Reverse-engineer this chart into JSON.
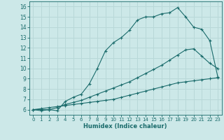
{
  "xlabel": "Humidex (Indice chaleur)",
  "bg_color": "#cce8e8",
  "grid_color": "#b8d8d8",
  "line_color": "#1a6b6b",
  "xlim": [
    -0.5,
    23.5
  ],
  "ylim": [
    5.5,
    16.5
  ],
  "xticks": [
    0,
    1,
    2,
    3,
    4,
    5,
    6,
    7,
    8,
    9,
    10,
    11,
    12,
    13,
    14,
    15,
    16,
    17,
    18,
    19,
    20,
    21,
    22,
    23
  ],
  "yticks": [
    6,
    7,
    8,
    9,
    10,
    11,
    12,
    13,
    14,
    15,
    16
  ],
  "line1_x": [
    0,
    1,
    2,
    3,
    4,
    5,
    6,
    7,
    8,
    9,
    10,
    11,
    12,
    13,
    14,
    15,
    16,
    17,
    18,
    19,
    20,
    21,
    22,
    23
  ],
  "line1_y": [
    6.0,
    5.9,
    6.0,
    5.9,
    6.8,
    7.2,
    7.5,
    8.5,
    10.0,
    11.7,
    12.5,
    13.0,
    13.7,
    14.7,
    15.0,
    15.0,
    15.3,
    15.4,
    15.9,
    15.0,
    14.0,
    13.8,
    12.7,
    9.2
  ],
  "line2_x": [
    0,
    1,
    2,
    3,
    4,
    5,
    6,
    7,
    8,
    9,
    10,
    11,
    12,
    13,
    14,
    15,
    16,
    17,
    18,
    19,
    20,
    21,
    22,
    23
  ],
  "line2_y": [
    6.0,
    6.0,
    6.0,
    6.2,
    6.5,
    6.7,
    6.9,
    7.2,
    7.5,
    7.8,
    8.1,
    8.4,
    8.7,
    9.1,
    9.5,
    9.9,
    10.3,
    10.8,
    11.3,
    11.8,
    11.9,
    11.2,
    10.5,
    10.0
  ],
  "line3_x": [
    0,
    1,
    2,
    3,
    4,
    5,
    6,
    7,
    8,
    9,
    10,
    11,
    12,
    13,
    14,
    15,
    16,
    17,
    18,
    19,
    20,
    21,
    22,
    23
  ],
  "line3_y": [
    6.0,
    6.1,
    6.2,
    6.3,
    6.4,
    6.5,
    6.6,
    6.7,
    6.8,
    6.9,
    7.0,
    7.2,
    7.4,
    7.6,
    7.8,
    8.0,
    8.2,
    8.4,
    8.6,
    8.7,
    8.8,
    8.9,
    9.0,
    9.1
  ]
}
